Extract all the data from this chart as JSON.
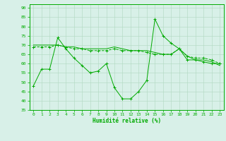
{
  "xlabel": "Humidité relative (%)",
  "ylabel": "",
  "bg_color": "#d8f0e8",
  "grid_color": "#b0d8c0",
  "line_color": "#00aa00",
  "marker": "+",
  "xlim": [
    -0.5,
    23.5
  ],
  "ylim": [
    35,
    92
  ],
  "yticks": [
    35,
    40,
    45,
    50,
    55,
    60,
    65,
    70,
    75,
    80,
    85,
    90
  ],
  "xticks": [
    0,
    1,
    2,
    3,
    4,
    5,
    6,
    7,
    8,
    9,
    10,
    11,
    12,
    13,
    14,
    15,
    16,
    17,
    18,
    19,
    20,
    21,
    22,
    23
  ],
  "series1": [
    48,
    57,
    57,
    74,
    68,
    63,
    59,
    55,
    56,
    60,
    47,
    41,
    41,
    45,
    51,
    84,
    75,
    71,
    68,
    62,
    62,
    61,
    60,
    60
  ],
  "series2": [
    69,
    69,
    69,
    70,
    69,
    68,
    68,
    67,
    67,
    67,
    68,
    67,
    67,
    67,
    66,
    65,
    65,
    65,
    68,
    64,
    63,
    63,
    62,
    60
  ],
  "series3": [
    70,
    70,
    70,
    70,
    69,
    69,
    68,
    68,
    68,
    68,
    69,
    68,
    67,
    67,
    67,
    66,
    65,
    65,
    68,
    64,
    62,
    62,
    61,
    59
  ],
  "xlabel_fontsize": 5.5,
  "tick_fontsize": 4.5,
  "lw": 0.7,
  "ms": 2.5
}
